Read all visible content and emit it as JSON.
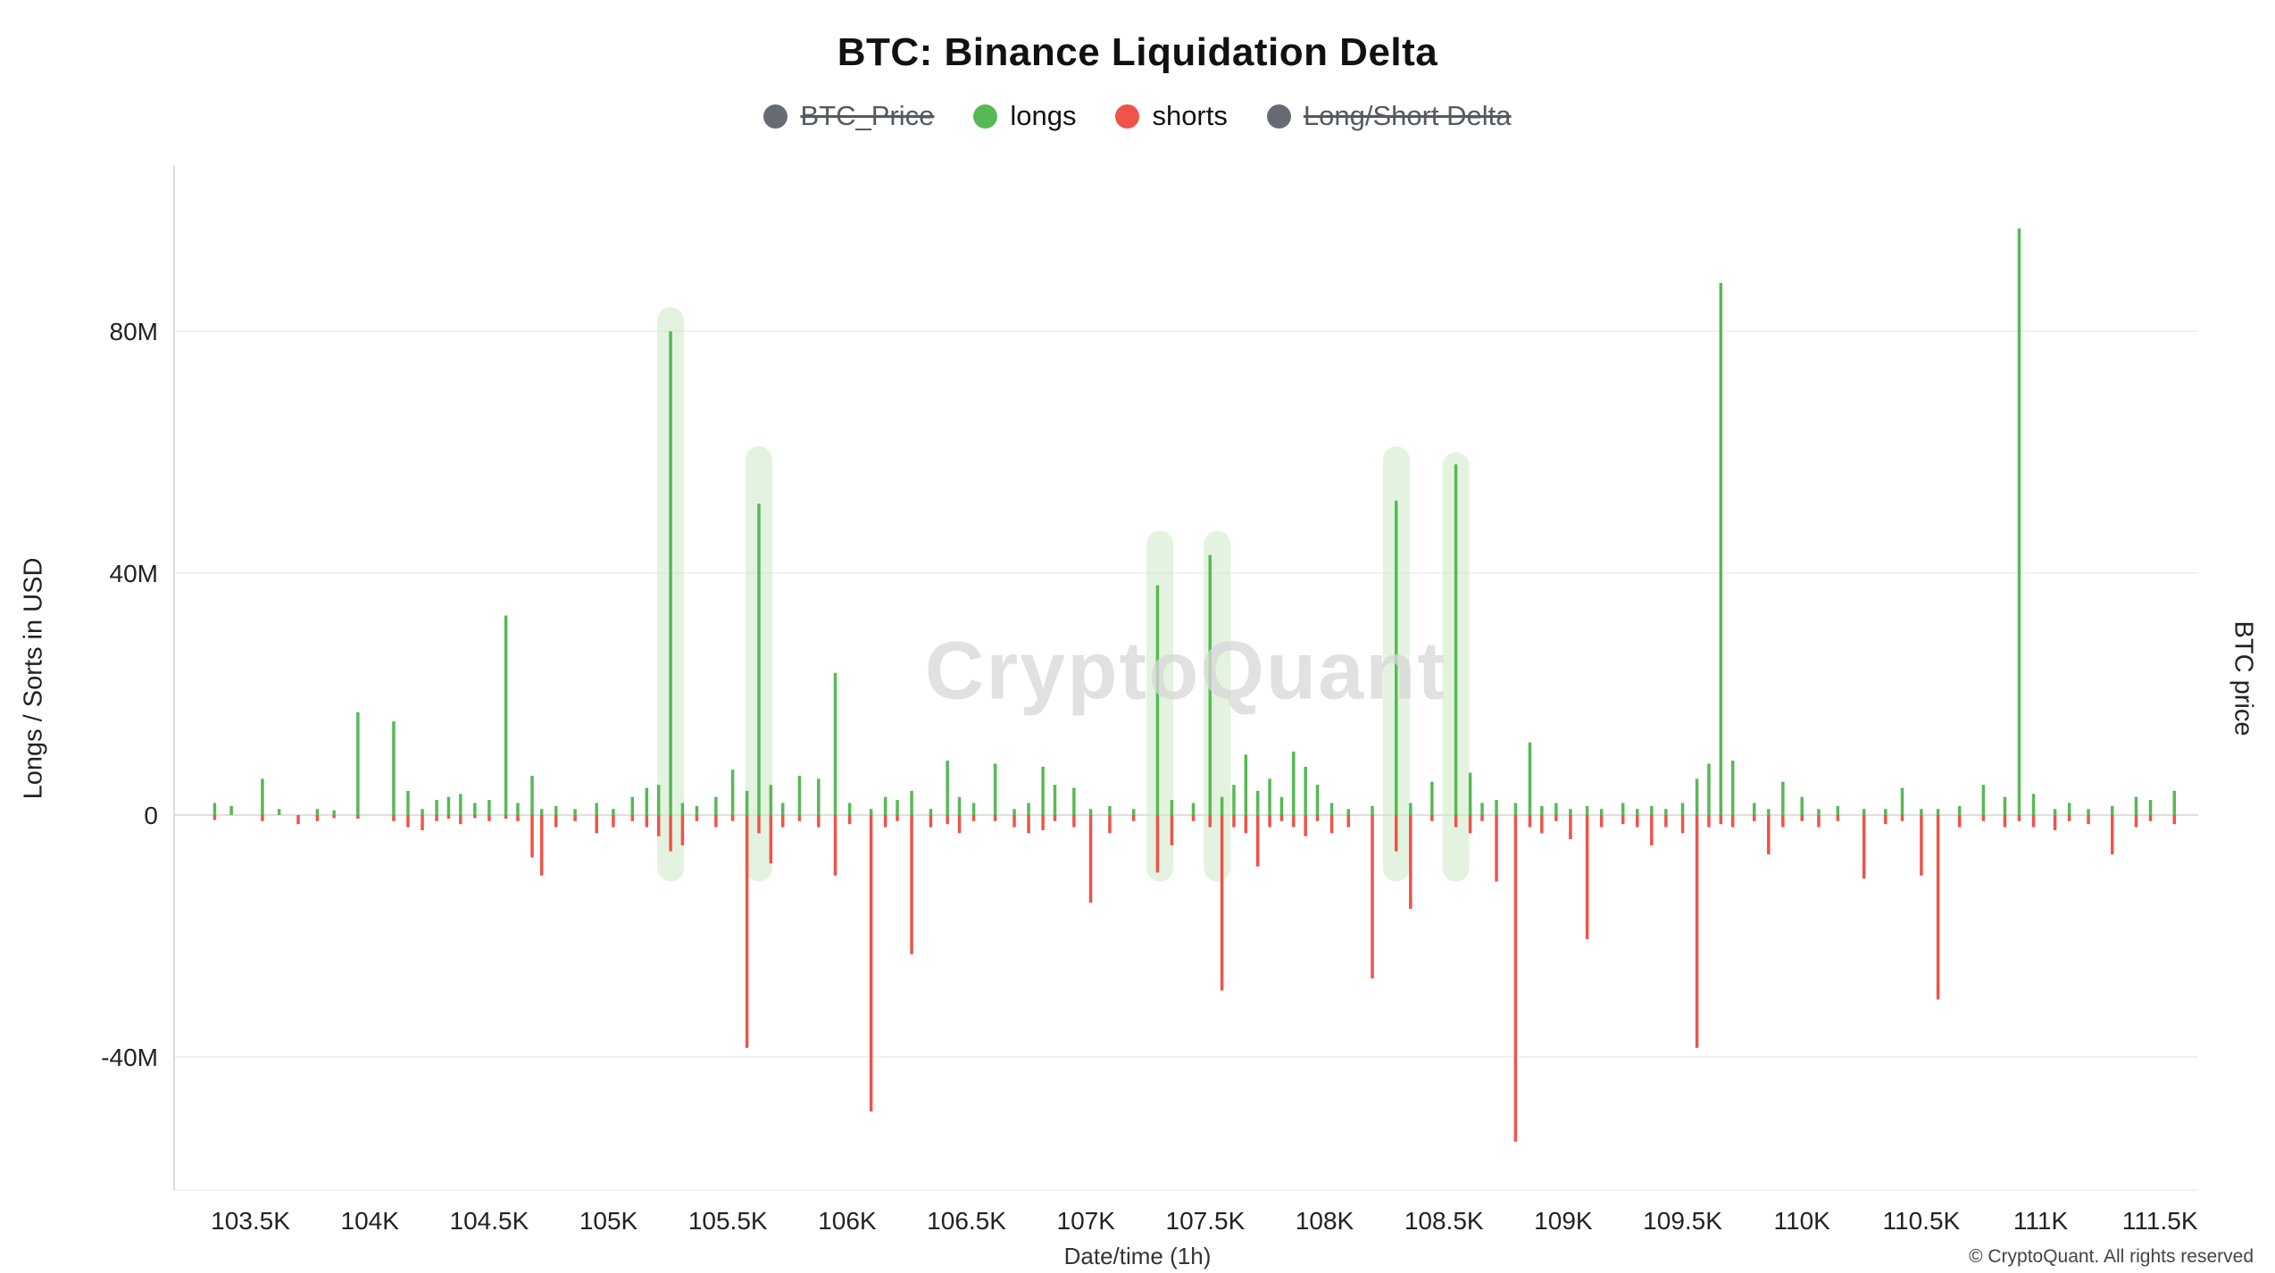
{
  "watermark": "CryptoQuant",
  "footer": {
    "copyright": "© CryptoQuant. All rights reserved"
  },
  "legend": {
    "items": [
      {
        "label": "BTC_Price",
        "color": "#676c74",
        "active": false
      },
      {
        "label": "longs",
        "color": "#57b956",
        "active": true
      },
      {
        "label": "shorts",
        "color": "#ef5349",
        "active": true
      },
      {
        "label": "Long/Short Delta",
        "color": "#676c74",
        "active": false
      }
    ]
  },
  "chart_data": {
    "type": "bar",
    "title": "BTC: Binance Liquidation Delta",
    "xlabel": "Date/time (1h)",
    "ylabel_left": "Longs / Sorts in USD",
    "ylabel_right": "BTC price",
    "legend_position": "top",
    "grid": "horizontal-only",
    "xlim": [
      103.18,
      111.66
    ],
    "ylim": [
      -62,
      106
    ],
    "y_ticks": [
      {
        "label": "80M",
        "value": 80
      },
      {
        "label": "40M",
        "value": 40
      },
      {
        "label": "0",
        "value": 0
      },
      {
        "label": "-40M",
        "value": -40
      }
    ],
    "x_ticks": [
      {
        "label": "103.5K",
        "value": 103.5
      },
      {
        "label": "104K",
        "value": 104
      },
      {
        "label": "104.5K",
        "value": 104.5
      },
      {
        "label": "105K",
        "value": 105
      },
      {
        "label": "105.5K",
        "value": 105.5
      },
      {
        "label": "106K",
        "value": 106
      },
      {
        "label": "106.5K",
        "value": 106.5
      },
      {
        "label": "107K",
        "value": 107
      },
      {
        "label": "107.5K",
        "value": 107.5
      },
      {
        "label": "108K",
        "value": 108
      },
      {
        "label": "108.5K",
        "value": 108.5
      },
      {
        "label": "109K",
        "value": 109
      },
      {
        "label": "109.5K",
        "value": 109.5
      },
      {
        "label": "110K",
        "value": 110
      },
      {
        "label": "110.5K",
        "value": 110.5
      },
      {
        "label": "111K",
        "value": 111
      },
      {
        "label": "111.5K",
        "value": 111.5
      }
    ],
    "series": [
      {
        "name": "longs",
        "color": "#57b956",
        "direction": "up"
      },
      {
        "name": "shorts",
        "color": "#ef5349",
        "direction": "down"
      }
    ],
    "bars_format": [
      "x_price_K",
      "longs_M_USD",
      "shorts_M_USD"
    ],
    "bars": [
      [
        103.35,
        2,
        -0.8
      ],
      [
        103.42,
        1.5,
        0
      ],
      [
        103.55,
        6,
        -1
      ],
      [
        103.62,
        1,
        0
      ],
      [
        103.7,
        0,
        -1.5
      ],
      [
        103.78,
        1,
        -1
      ],
      [
        103.85,
        0.8,
        -0.5
      ],
      [
        103.95,
        17,
        -0.6
      ],
      [
        104.1,
        15.5,
        -1
      ],
      [
        104.16,
        4,
        -2
      ],
      [
        104.22,
        1,
        -2.5
      ],
      [
        104.28,
        2.5,
        -1
      ],
      [
        104.33,
        3,
        -0.6
      ],
      [
        104.38,
        3.5,
        -1.5
      ],
      [
        104.44,
        2,
        -0.5
      ],
      [
        104.5,
        2.5,
        -1
      ],
      [
        104.57,
        33,
        -0.6
      ],
      [
        104.62,
        2,
        -1
      ],
      [
        104.68,
        6.5,
        -7
      ],
      [
        104.72,
        1,
        -10
      ],
      [
        104.78,
        1.5,
        -2
      ],
      [
        104.86,
        1,
        -1
      ],
      [
        104.95,
        2,
        -3
      ],
      [
        105.02,
        1,
        -2
      ],
      [
        105.1,
        3,
        -1
      ],
      [
        105.16,
        4.5,
        -2
      ],
      [
        105.21,
        5,
        -3.5
      ],
      [
        105.26,
        80,
        -6
      ],
      [
        105.31,
        2,
        -5
      ],
      [
        105.37,
        1.5,
        -1
      ],
      [
        105.45,
        3,
        -2
      ],
      [
        105.52,
        7.5,
        -1
      ],
      [
        105.58,
        4,
        -38.5
      ],
      [
        105.63,
        51.5,
        -3
      ],
      [
        105.68,
        5,
        -8
      ],
      [
        105.73,
        2,
        -2
      ],
      [
        105.8,
        6.5,
        -1
      ],
      [
        105.88,
        6,
        -2
      ],
      [
        105.95,
        23.5,
        -10
      ],
      [
        106.01,
        2,
        -1.5
      ],
      [
        106.1,
        1,
        -49
      ],
      [
        106.16,
        3,
        -2
      ],
      [
        106.21,
        2.5,
        -1
      ],
      [
        106.27,
        4,
        -23
      ],
      [
        106.35,
        1,
        -2
      ],
      [
        106.42,
        9,
        -1.5
      ],
      [
        106.47,
        3,
        -3
      ],
      [
        106.53,
        2,
        -1
      ],
      [
        106.62,
        8.5,
        -1
      ],
      [
        106.7,
        1,
        -2
      ],
      [
        106.76,
        2,
        -3
      ],
      [
        106.82,
        8,
        -2.5
      ],
      [
        106.87,
        5,
        -1
      ],
      [
        106.95,
        4.5,
        -2
      ],
      [
        107.02,
        1,
        -14.5
      ],
      [
        107.1,
        1.5,
        -3
      ],
      [
        107.2,
        1,
        -1
      ],
      [
        107.3,
        38,
        -9.5
      ],
      [
        107.36,
        2.5,
        -5
      ],
      [
        107.45,
        2,
        -1
      ],
      [
        107.52,
        43,
        -2
      ],
      [
        107.57,
        3,
        -29
      ],
      [
        107.62,
        5,
        -2
      ],
      [
        107.67,
        10,
        -3
      ],
      [
        107.72,
        4,
        -8.5
      ],
      [
        107.77,
        6,
        -2
      ],
      [
        107.82,
        3,
        -1
      ],
      [
        107.87,
        10.5,
        -2
      ],
      [
        107.92,
        8,
        -3.5
      ],
      [
        107.97,
        5,
        -1
      ],
      [
        108.03,
        2,
        -3
      ],
      [
        108.1,
        1,
        -2
      ],
      [
        108.2,
        1.5,
        -27
      ],
      [
        108.3,
        52,
        -6
      ],
      [
        108.36,
        2,
        -15.5
      ],
      [
        108.45,
        5.5,
        -1
      ],
      [
        108.55,
        58,
        -2
      ],
      [
        108.61,
        7,
        -3
      ],
      [
        108.66,
        2,
        -1
      ],
      [
        108.72,
        2.5,
        -11
      ],
      [
        108.8,
        2,
        -54
      ],
      [
        108.86,
        12,
        -2
      ],
      [
        108.91,
        1.5,
        -3
      ],
      [
        108.97,
        2,
        -1
      ],
      [
        109.03,
        1,
        -4
      ],
      [
        109.1,
        1.5,
        -20.5
      ],
      [
        109.16,
        1,
        -2
      ],
      [
        109.25,
        2,
        -1.5
      ],
      [
        109.31,
        1,
        -2
      ],
      [
        109.37,
        1.5,
        -5
      ],
      [
        109.43,
        1,
        -2
      ],
      [
        109.5,
        2,
        -3
      ],
      [
        109.56,
        6,
        -38.5
      ],
      [
        109.61,
        8.5,
        -2
      ],
      [
        109.66,
        88,
        -1.5
      ],
      [
        109.71,
        9,
        -2
      ],
      [
        109.8,
        2,
        -1
      ],
      [
        109.86,
        1,
        -6.5
      ],
      [
        109.92,
        5.5,
        -2
      ],
      [
        110.0,
        3,
        -1
      ],
      [
        110.07,
        1,
        -2
      ],
      [
        110.15,
        1.5,
        -1
      ],
      [
        110.26,
        1,
        -10.5
      ],
      [
        110.35,
        1,
        -1.5
      ],
      [
        110.42,
        4.5,
        -1
      ],
      [
        110.5,
        1,
        -10
      ],
      [
        110.57,
        1,
        -30.5
      ],
      [
        110.66,
        1.5,
        -2
      ],
      [
        110.76,
        5,
        -1
      ],
      [
        110.85,
        3,
        -2
      ],
      [
        110.91,
        97,
        -1
      ],
      [
        110.97,
        3.5,
        -2
      ],
      [
        111.06,
        1,
        -2.5
      ],
      [
        111.12,
        2,
        -1
      ],
      [
        111.2,
        1,
        -1.5
      ],
      [
        111.3,
        1.5,
        -6.5
      ],
      [
        111.4,
        3,
        -2
      ],
      [
        111.46,
        2.5,
        -1
      ],
      [
        111.56,
        4,
        -1.5
      ]
    ],
    "highlight_bands": [
      {
        "x": 105.26,
        "top": 84,
        "bottom": -11
      },
      {
        "x": 105.63,
        "top": 61,
        "bottom": -11
      },
      {
        "x": 107.31,
        "top": 47,
        "bottom": -11
      },
      {
        "x": 107.55,
        "top": 47,
        "bottom": -11
      },
      {
        "x": 108.3,
        "top": 61,
        "bottom": -11
      },
      {
        "x": 108.55,
        "top": 60,
        "bottom": -11
      }
    ],
    "colors": {
      "longs": "#57b956",
      "shorts": "#ef5349",
      "band": "#cdeac6",
      "grid": "#ededed",
      "zero_line": "#e0e0e0",
      "axis_line": "#cfcfcf",
      "tick_text": "#222222"
    }
  }
}
